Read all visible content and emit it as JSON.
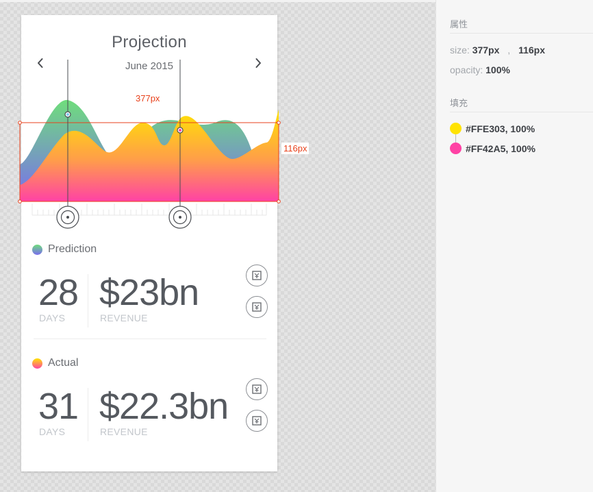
{
  "card": {
    "title": "Projection",
    "month": "June 2015",
    "prev_icon": "chevron-left-icon",
    "next_icon": "chevron-right-icon"
  },
  "chart_measure": {
    "width_label": "377px",
    "height_label": "116px"
  },
  "prediction": {
    "label": "Prediction",
    "days_value": "28",
    "days_label": "DAYS",
    "revenue_value": "$23bn",
    "revenue_label": "REVENUE"
  },
  "actual": {
    "label": "Actual",
    "days_value": "31",
    "days_label": "DAYS",
    "revenue_value": "$22.3bn",
    "revenue_label": "REVENUE"
  },
  "inspector": {
    "attributes_heading": "属性",
    "size_label": "size:",
    "size_w": "377px",
    "size_sep": ",",
    "size_h": "116px",
    "opacity_label": "opacity:",
    "opacity_value": "100%",
    "fill_heading": "填充",
    "fills": [
      {
        "color": "#FFE303",
        "text": "#FFE303, 100%"
      },
      {
        "color": "#FF42A5",
        "text": "#FF42A5, 100%"
      }
    ]
  },
  "colors": {
    "measure": "#e8421c",
    "green": "#6fdd7c",
    "purple": "#7a6cf0",
    "yellow": "#ffe303",
    "pink": "#ff42a5"
  }
}
